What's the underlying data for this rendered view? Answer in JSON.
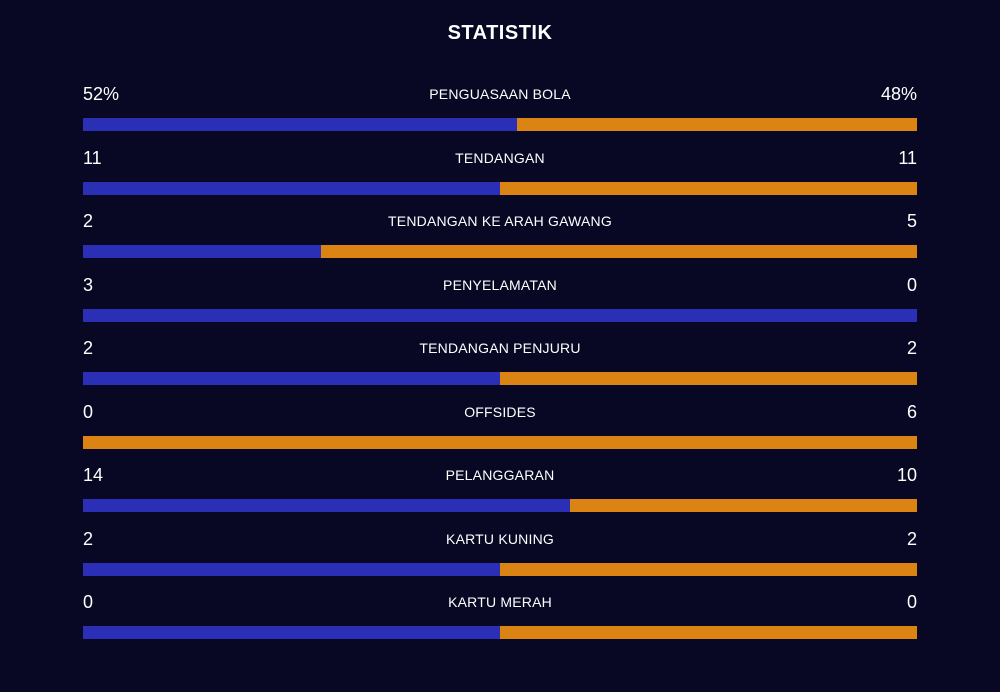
{
  "title": "STATISTIK",
  "colors": {
    "background": "#080824",
    "home": "#2b2fb5",
    "away": "#dc8413",
    "text": "#ffffff"
  },
  "stats": [
    {
      "label": "PENGUASAAN BOLA",
      "home": "52%",
      "away": "48%",
      "home_value": 52,
      "away_value": 48
    },
    {
      "label": "TENDANGAN",
      "home": "11",
      "away": "11",
      "home_value": 11,
      "away_value": 11
    },
    {
      "label": "TENDANGAN KE ARAH GAWANG",
      "home": "2",
      "away": "5",
      "home_value": 2,
      "away_value": 5
    },
    {
      "label": "PENYELAMATAN",
      "home": "3",
      "away": "0",
      "home_value": 3,
      "away_value": 0
    },
    {
      "label": "TENDANGAN PENJURU",
      "home": "2",
      "away": "2",
      "home_value": 2,
      "away_value": 2
    },
    {
      "label": "OFFSIDES",
      "home": "0",
      "away": "6",
      "home_value": 0,
      "away_value": 6
    },
    {
      "label": "PELANGGARAN",
      "home": "14",
      "away": "10",
      "home_value": 14,
      "away_value": 10
    },
    {
      "label": "KARTU KUNING",
      "home": "2",
      "away": "2",
      "home_value": 2,
      "away_value": 2
    },
    {
      "label": "KARTU MERAH",
      "home": "0",
      "away": "0",
      "home_value": 0,
      "away_value": 0
    }
  ]
}
